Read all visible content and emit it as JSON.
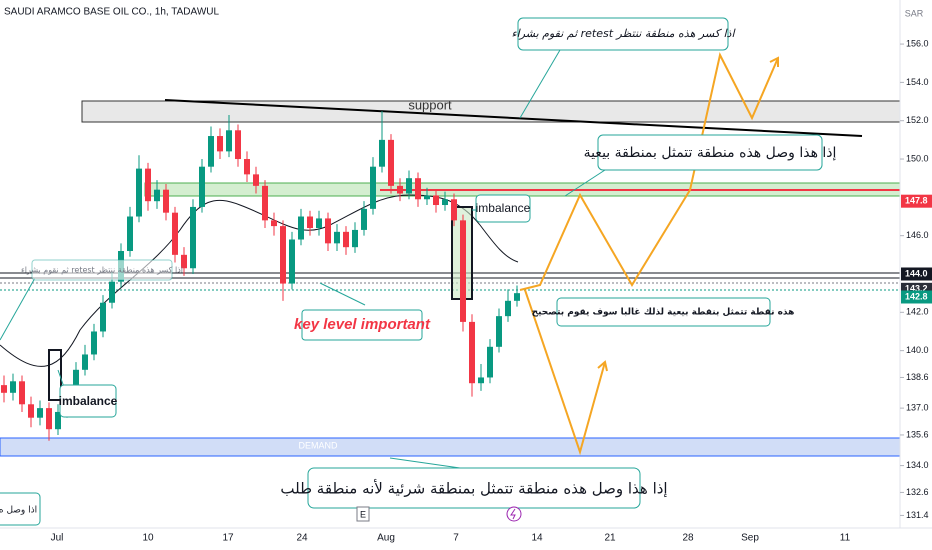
{
  "chart_data": {
    "type": "candlestick",
    "title": "SAUDI ARAMCO BASE OIL CO., 1h, TADAWUL",
    "currency": "SAR",
    "up_color": "#089981",
    "down_color": "#f23645",
    "open": [
      138.2,
      137.8,
      138.4,
      137.2,
      136.5,
      137.0,
      135.9,
      136.8,
      137.6,
      139.0,
      139.8,
      141.0,
      142.5,
      143.6,
      145.2,
      147.0,
      149.5,
      147.8,
      148.4,
      147.2,
      145.0,
      144.3,
      147.5,
      149.6,
      151.2,
      150.4,
      151.5,
      150.0,
      149.2,
      148.6,
      146.8,
      146.5,
      143.5,
      145.8,
      147.0,
      146.4,
      146.9,
      145.6,
      146.2,
      145.4,
      146.3,
      147.4,
      149.6,
      151.0,
      148.6,
      148.2,
      149.0,
      147.9,
      148.1,
      147.6,
      147.9,
      146.8,
      141.5,
      138.3,
      138.6,
      140.2,
      141.8,
      142.6
    ],
    "high": [
      138.7,
      138.8,
      138.7,
      137.6,
      137.4,
      137.3,
      137.2,
      138.0,
      139.4,
      140.3,
      141.4,
      142.9,
      144.1,
      145.6,
      147.5,
      150.2,
      149.8,
      148.9,
      148.7,
      147.5,
      145.4,
      147.9,
      150.0,
      151.7,
      151.6,
      152.3,
      151.8,
      150.4,
      149.6,
      148.9,
      147.2,
      146.8,
      146.2,
      147.4,
      147.3,
      147.3,
      147.2,
      146.6,
      146.5,
      146.7,
      147.8,
      150.1,
      152.5,
      151.3,
      149.0,
      149.4,
      149.3,
      148.5,
      148.4,
      148.3,
      148.2,
      147.1,
      141.9,
      139.3,
      140.6,
      142.2,
      143.2,
      143.4
    ],
    "low": [
      137.3,
      137.4,
      136.8,
      136.0,
      136.1,
      135.3,
      135.6,
      136.5,
      137.3,
      138.7,
      139.5,
      140.7,
      142.2,
      143.3,
      144.9,
      146.7,
      147.3,
      147.4,
      146.8,
      144.6,
      143.9,
      144.0,
      147.2,
      149.3,
      150.0,
      150.1,
      149.6,
      148.8,
      148.2,
      146.4,
      146.0,
      142.6,
      143.2,
      145.5,
      146.0,
      146.0,
      145.2,
      145.2,
      145.0,
      145.1,
      146.0,
      147.1,
      149.3,
      148.2,
      147.8,
      147.9,
      147.5,
      147.6,
      147.2,
      147.3,
      146.5,
      141.0,
      137.6,
      137.9,
      138.3,
      139.9,
      141.5,
      142.3
    ],
    "close": [
      137.8,
      138.4,
      137.2,
      136.5,
      137.0,
      135.9,
      136.8,
      137.6,
      139.0,
      139.8,
      141.0,
      142.5,
      143.6,
      145.2,
      147.0,
      149.5,
      147.8,
      148.4,
      147.2,
      145.0,
      144.3,
      147.5,
      149.6,
      151.2,
      150.4,
      151.5,
      150.0,
      149.2,
      148.6,
      146.8,
      146.5,
      143.5,
      145.8,
      147.0,
      146.4,
      146.9,
      145.6,
      146.2,
      145.4,
      146.3,
      147.4,
      149.6,
      151.0,
      148.6,
      148.2,
      149.0,
      147.9,
      148.1,
      147.6,
      147.9,
      146.8,
      141.5,
      138.3,
      138.6,
      140.2,
      141.8,
      142.6,
      143.0
    ],
    "ylim": [
      130.9,
      158.3
    ],
    "yticks": [
      {
        "value": 131.4,
        "label": "131.4"
      },
      {
        "value": 132.6,
        "label": "132.6"
      },
      {
        "value": 134,
        "label": "134.0"
      },
      {
        "value": 135.6,
        "label": "135.6"
      },
      {
        "value": 137,
        "label": "137.0"
      },
      {
        "value": 138.6,
        "label": "138.6"
      },
      {
        "value": 140,
        "label": "140.0"
      },
      {
        "value": 142,
        "label": "142.0"
      },
      {
        "value": 146,
        "label": "146.0"
      },
      {
        "value": 150,
        "label": "150.0"
      },
      {
        "value": 152,
        "label": "152.0"
      },
      {
        "value": 154,
        "label": "154.0"
      },
      {
        "value": 156,
        "label": "156.0"
      }
    ],
    "xticks": [
      "Jul",
      "10",
      "17",
      "24",
      "Aug",
      "7",
      "14",
      "21",
      "28",
      "Sep",
      "11"
    ],
    "price_labels": [
      {
        "value": 147.8,
        "color": "#f23645"
      },
      {
        "value": {
          "value": 144,
          "label": "144.0"
        },
        "color": "#131722"
      },
      {
        "value": 143.2,
        "color": "#2a2e39"
      },
      {
        "value": 142.8,
        "color": "#089981"
      }
    ],
    "annotations": {
      "support": "support",
      "demand": "DEMAND",
      "imbalance_right": "imbalance",
      "imbalance_left": "imbalance",
      "key_level": "key level important",
      "earnings": "E",
      "note_retest": "اذا كسر هذه منطقة ننتظر retest ثم نقوم بشراء",
      "note_sell_zone": "إذا هذا وصل هذه منطقة تتمثل بمنطقة بيعية",
      "note_correction": "هذه نقطة تتمثل بنقطة بيعية لذلك غالبا سوف يقوم بتصحيح",
      "note_buy_zone": "إذا هذا وصل هذه منطقة تتمثل بمنطقة شرئية لأنه منطقة طلب",
      "note_retest_small": "اذا كسر هذه منطقة ننتظر retest ثم نقوم بشراء",
      "note_cut": "اذا وصل ه"
    }
  }
}
